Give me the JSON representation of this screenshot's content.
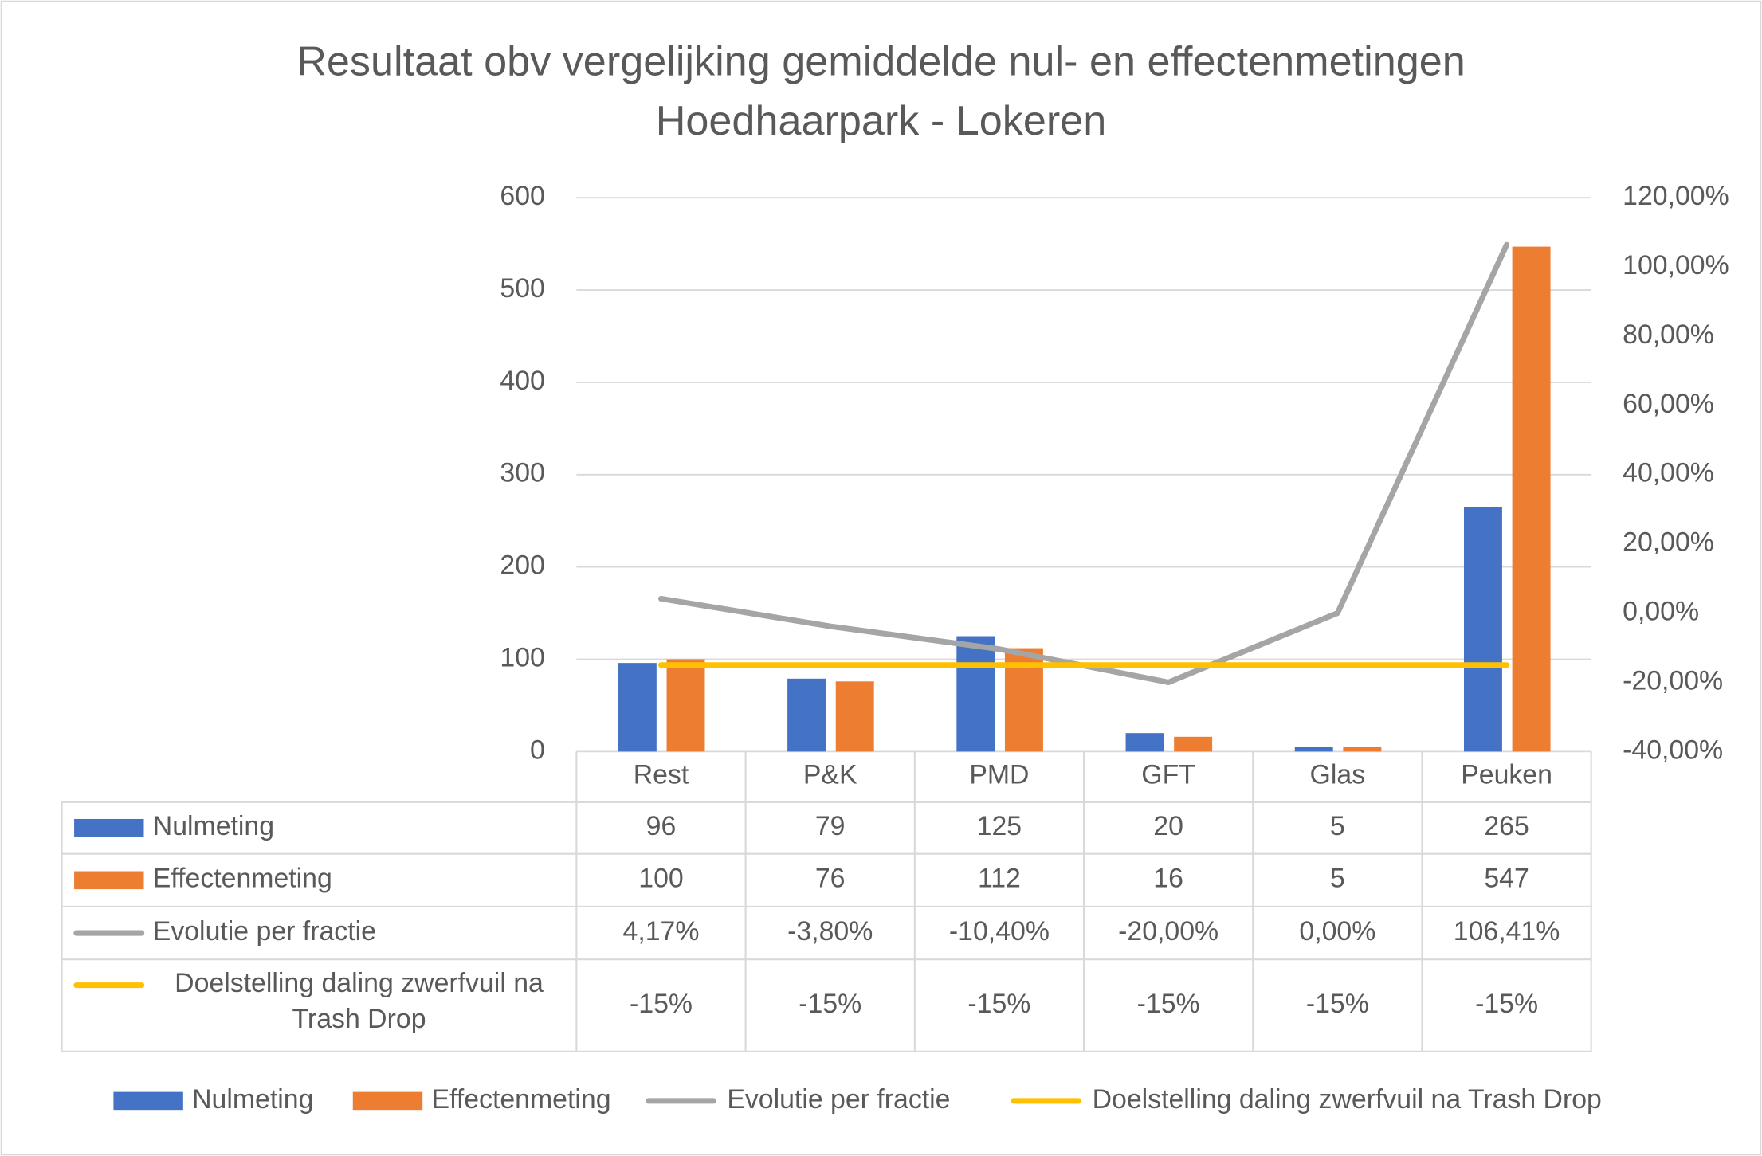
{
  "chart_data": {
    "type": "combo",
    "title": "Resultaat obv vergelijking gemiddelde nul- en effectenmetingen Hoedhaarpark - Lokeren",
    "categories": [
      "Rest",
      "P&K",
      "PMD",
      "GFT",
      "Glas",
      "Peuken"
    ],
    "series": [
      {
        "name": "Nulmeting",
        "type": "bar",
        "color": "#4472c4",
        "values": [
          96,
          79,
          125,
          20,
          5,
          265
        ]
      },
      {
        "name": "Effectenmeting",
        "type": "bar",
        "color": "#ed7d31",
        "values": [
          100,
          76,
          112,
          16,
          5,
          547
        ]
      },
      {
        "name": "Evolutie per fractie",
        "type": "line",
        "axis": "y2",
        "color": "#a5a5a5",
        "values": [
          4.17,
          -3.8,
          -10.4,
          -20.0,
          0.0,
          106.41
        ],
        "value_labels": [
          "4,17%",
          "-3,80%",
          "-10,40%",
          "-20,00%",
          "0,00%",
          "106,41%"
        ]
      },
      {
        "name": "Doelstelling daling zwerfvuil na Trash Drop",
        "type": "line",
        "axis": "y2",
        "color": "#ffc000",
        "values": [
          -15,
          -15,
          -15,
          -15,
          -15,
          -15
        ],
        "value_labels": [
          "-15%",
          "-15%",
          "-15%",
          "-15%",
          "-15%",
          "-15%"
        ]
      }
    ],
    "ylim": [
      0,
      600
    ],
    "yticks": [
      0,
      100,
      200,
      300,
      400,
      500,
      600
    ],
    "y2lim": [
      -40,
      120
    ],
    "y2ticks": [
      {
        "value": -40,
        "label": "-40,00%"
      },
      {
        "value": -20,
        "label": "-20,00%"
      },
      {
        "value": 0,
        "label": "0,00%"
      },
      {
        "value": 20,
        "label": "20,00%"
      },
      {
        "value": 40,
        "label": "40,00%"
      },
      {
        "value": 60,
        "label": "60,00%"
      },
      {
        "value": 80,
        "label": "80,00%"
      },
      {
        "value": 100,
        "label": "100,00%"
      },
      {
        "value": 120,
        "label": "120,00%"
      }
    ],
    "grid": true,
    "legend": "bottom",
    "data_table": true
  }
}
